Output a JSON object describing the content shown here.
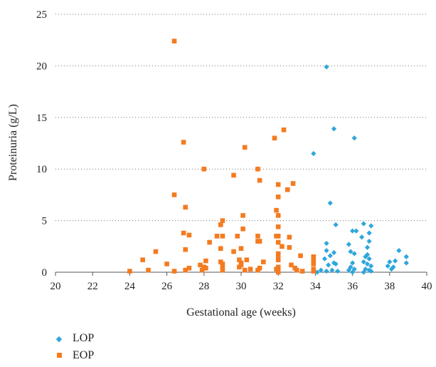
{
  "chart_data": {
    "type": "scatter",
    "xlabel": "Gestational age (weeks)",
    "ylabel": "Proteinuria (g/L)",
    "xlim": [
      20,
      40
    ],
    "ylim": [
      0,
      25
    ],
    "xticks": [
      20,
      22,
      24,
      26,
      28,
      30,
      32,
      34,
      36,
      38,
      40
    ],
    "yticks": [
      0,
      5,
      10,
      15,
      20,
      25
    ],
    "grid": "horizontal-dotted",
    "legend_position": "bottom-left",
    "series": [
      {
        "name": "LOP",
        "marker": "diamond",
        "color": "#2ea6dc",
        "points": [
          [
            33.9,
            11.5
          ],
          [
            34.6,
            19.9
          ],
          [
            35.0,
            13.9
          ],
          [
            36.1,
            13.0
          ],
          [
            34.8,
            6.7
          ],
          [
            35.1,
            4.6
          ],
          [
            34.6,
            2.8
          ],
          [
            34.6,
            2.1
          ],
          [
            34.5,
            1.3
          ],
          [
            34.8,
            1.6
          ],
          [
            35.0,
            1.9
          ],
          [
            34.7,
            0.7
          ],
          [
            35.0,
            0.9
          ],
          [
            35.1,
            0.8
          ],
          [
            34.3,
            0.2
          ],
          [
            34.6,
            0.1
          ],
          [
            34.9,
            0.2
          ],
          [
            35.2,
            0.1
          ],
          [
            34.1,
            0.0
          ],
          [
            35.8,
            2.7
          ],
          [
            36.0,
            4.0
          ],
          [
            36.2,
            4.0
          ],
          [
            35.9,
            2.0
          ],
          [
            36.1,
            1.8
          ],
          [
            36.0,
            0.9
          ],
          [
            35.9,
            0.5
          ],
          [
            36.1,
            0.3
          ],
          [
            35.8,
            0.2
          ],
          [
            36.0,
            0.0
          ],
          [
            36.6,
            4.7
          ],
          [
            36.5,
            3.4
          ],
          [
            36.9,
            3.8
          ],
          [
            37.0,
            4.5
          ],
          [
            36.9,
            3.0
          ],
          [
            36.8,
            2.4
          ],
          [
            36.8,
            1.7
          ],
          [
            36.7,
            1.5
          ],
          [
            36.9,
            1.3
          ],
          [
            36.6,
            1.0
          ],
          [
            36.8,
            0.8
          ],
          [
            37.0,
            0.6
          ],
          [
            36.7,
            0.3
          ],
          [
            36.9,
            0.2
          ],
          [
            37.0,
            0.1
          ],
          [
            36.6,
            0.0
          ],
          [
            38.0,
            1.0
          ],
          [
            37.9,
            0.6
          ],
          [
            38.1,
            0.3
          ],
          [
            38.2,
            0.5
          ],
          [
            38.3,
            1.1
          ],
          [
            38.5,
            2.1
          ],
          [
            38.9,
            1.5
          ],
          [
            38.9,
            0.9
          ]
        ]
      },
      {
        "name": "EOP",
        "marker": "square",
        "color": "#f47b20",
        "points": [
          [
            24.0,
            0.1
          ],
          [
            24.7,
            1.2
          ],
          [
            25.0,
            0.2
          ],
          [
            25.4,
            2.0
          ],
          [
            26.0,
            0.8
          ],
          [
            26.4,
            22.4
          ],
          [
            26.4,
            7.5
          ],
          [
            26.4,
            0.1
          ],
          [
            26.9,
            12.6
          ],
          [
            26.9,
            3.8
          ],
          [
            27.0,
            2.2
          ],
          [
            27.0,
            6.3
          ],
          [
            27.2,
            3.6
          ],
          [
            27.0,
            0.2
          ],
          [
            27.2,
            0.4
          ],
          [
            27.9,
            0.2
          ],
          [
            28.0,
            10.0
          ],
          [
            28.0,
            0.5
          ],
          [
            27.8,
            0.7
          ],
          [
            28.1,
            0.4
          ],
          [
            28.1,
            1.1
          ],
          [
            28.3,
            2.9
          ],
          [
            28.7,
            3.5
          ],
          [
            29.0,
            5.0
          ],
          [
            28.9,
            4.6
          ],
          [
            29.0,
            3.5
          ],
          [
            28.9,
            2.3
          ],
          [
            28.9,
            1.0
          ],
          [
            29.0,
            0.8
          ],
          [
            29.0,
            0.5
          ],
          [
            29.0,
            0.2
          ],
          [
            29.6,
            9.4
          ],
          [
            29.6,
            2.0
          ],
          [
            29.8,
            3.5
          ],
          [
            29.9,
            1.2
          ],
          [
            29.9,
            0.5
          ],
          [
            30.0,
            2.3
          ],
          [
            30.0,
            0.9
          ],
          [
            30.0,
            0.7
          ],
          [
            30.1,
            5.5
          ],
          [
            30.1,
            4.2
          ],
          [
            30.2,
            12.1
          ],
          [
            30.3,
            1.2
          ],
          [
            30.2,
            0.2
          ],
          [
            30.9,
            10.0
          ],
          [
            30.9,
            3.5
          ],
          [
            30.9,
            3.0
          ],
          [
            31.0,
            8.9
          ],
          [
            31.0,
            3.0
          ],
          [
            31.0,
            0.4
          ],
          [
            30.9,
            0.2
          ],
          [
            31.8,
            13.0
          ],
          [
            31.9,
            6.0
          ],
          [
            31.9,
            3.5
          ],
          [
            32.0,
            8.5
          ],
          [
            32.0,
            7.3
          ],
          [
            32.0,
            5.5
          ],
          [
            32.0,
            4.4
          ],
          [
            32.0,
            3.5
          ],
          [
            32.0,
            2.9
          ],
          [
            32.0,
            1.8
          ],
          [
            32.0,
            1.5
          ],
          [
            32.0,
            1.2
          ],
          [
            32.0,
            0.5
          ],
          [
            32.0,
            0.2
          ],
          [
            32.3,
            13.8
          ],
          [
            32.2,
            2.5
          ],
          [
            32.5,
            8.0
          ],
          [
            32.6,
            3.4
          ],
          [
            32.6,
            2.4
          ],
          [
            32.8,
            8.6
          ],
          [
            32.7,
            0.7
          ],
          [
            32.9,
            0.4
          ],
          [
            33.0,
            0.2
          ],
          [
            33.2,
            1.6
          ],
          [
            33.3,
            0.1
          ],
          [
            33.9,
            1.5
          ],
          [
            33.9,
            1.1
          ],
          [
            33.9,
            0.8
          ],
          [
            33.9,
            0.3
          ],
          [
            33.9,
            0.1
          ],
          [
            31.9,
            0.3
          ],
          [
            32.0,
            0.0
          ],
          [
            31.2,
            1.0
          ],
          [
            30.5,
            0.3
          ]
        ]
      }
    ]
  },
  "legend": {
    "lop_label": "LOP",
    "eop_label": "EOP"
  }
}
